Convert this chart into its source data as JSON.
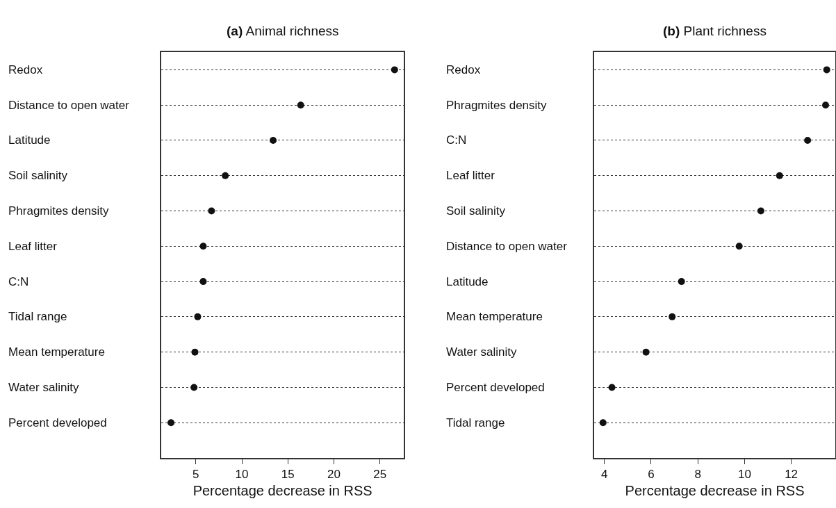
{
  "chart_data": [
    {
      "type": "scatter",
      "orientation": "horizontal",
      "title": "(a) Animal richness",
      "xlabel": "Percentage decrease in RSS",
      "categories": [
        "Redox",
        "Distance to open water",
        "Latitude",
        "Soil salinity",
        "Phragmites density",
        "Leaf litter",
        "C:N",
        "Tidal range",
        "Mean temperature",
        "Water salinity",
        "Percent developed"
      ],
      "series": [
        {
          "color": "#111111",
          "values": [
            26.6,
            16.4,
            13.4,
            8.2,
            6.7,
            5.8,
            5.8,
            5.2,
            4.9,
            4.8,
            2.3
          ]
        }
      ],
      "xlim": [
        1.25,
        27.6
      ],
      "xticks": [
        5,
        10,
        15,
        20,
        25
      ],
      "grid": "y",
      "line_style": "dotted",
      "marker": "circle"
    },
    {
      "type": "scatter",
      "orientation": "horizontal",
      "title": "(b) Plant richness",
      "xlabel": "Percentage decrease in RSS",
      "categories": [
        "Redox",
        "Phragmites density",
        "C:N",
        "Leaf litter",
        "Soil salinity",
        "Distance to open water",
        "Latitude",
        "Mean temperature",
        "Water salinity",
        "Percent developed",
        "Tidal range"
      ],
      "series": [
        {
          "color": "#111111",
          "values": [
            13.52,
            13.47,
            12.7,
            11.5,
            10.7,
            9.77,
            7.3,
            6.9,
            5.78,
            4.32,
            3.94
          ]
        }
      ],
      "xlim": [
        3.57,
        13.88
      ],
      "xticks": [
        4,
        6,
        8,
        10,
        12
      ],
      "grid": "y",
      "line_style": "dotted",
      "marker": "circle"
    }
  ]
}
